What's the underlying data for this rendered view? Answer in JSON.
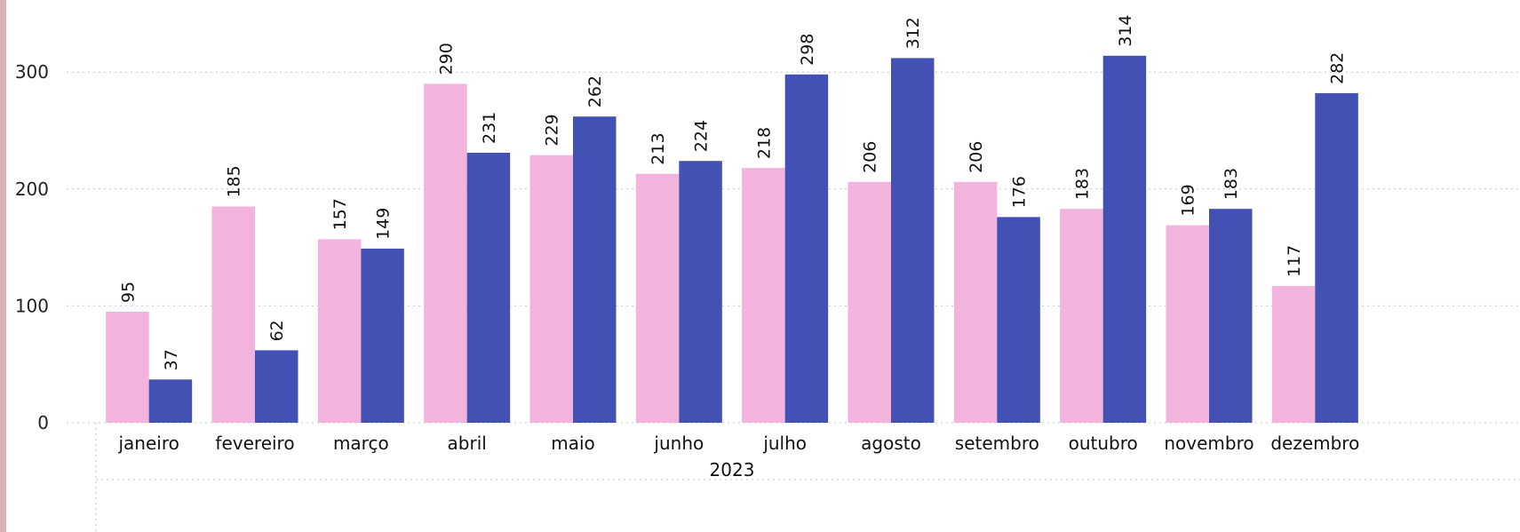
{
  "chart_data": {
    "type": "bar",
    "title": "",
    "xlabel": "",
    "ylabel": "",
    "year": "2023",
    "categories": [
      "janeiro",
      "fevereiro",
      "março",
      "abril",
      "maio",
      "junho",
      "julho",
      "agosto",
      "setembro",
      "outubro",
      "novembro",
      "dezembro"
    ],
    "series": [
      {
        "color": "#f2b3dc",
        "values": [
          95,
          185,
          157,
          290,
          229,
          213,
          218,
          206,
          206,
          183,
          169,
          117
        ]
      },
      {
        "color": "#4251b3",
        "values": [
          37,
          62,
          149,
          231,
          262,
          224,
          298,
          312,
          176,
          314,
          183,
          282
        ]
      }
    ],
    "ylim": [
      0,
      340
    ],
    "yticks": [
      0,
      100,
      200,
      300
    ],
    "grid": true,
    "legend": "none"
  },
  "colors": {
    "gridline": "#c8c8c8",
    "left_strip": "#d9b3b3"
  }
}
